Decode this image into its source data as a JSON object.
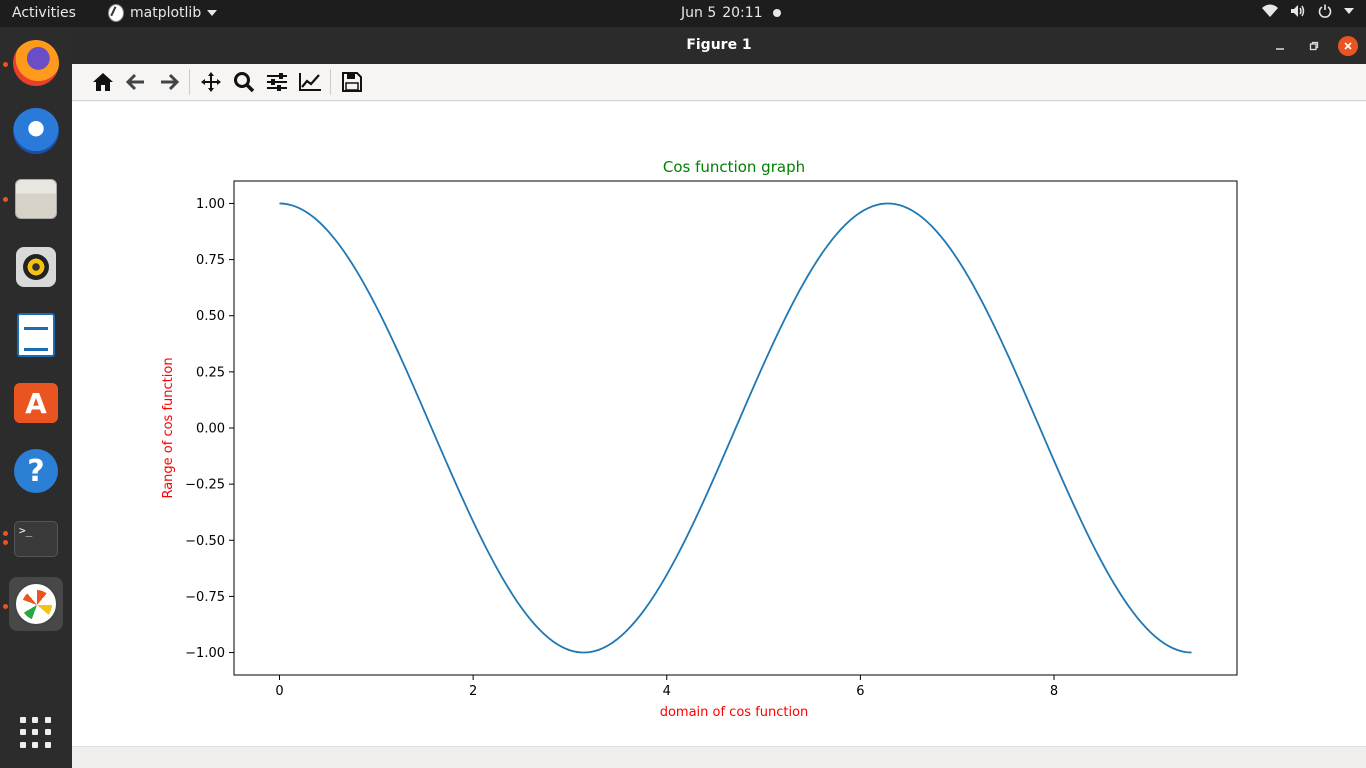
{
  "topbar": {
    "activities": "Activities",
    "app_name": "matplotlib",
    "date": "Jun 5",
    "time": "20:11"
  },
  "dock": {
    "items": [
      "firefox",
      "thunderbird",
      "files",
      "rhythmbox",
      "libreoffice-writer",
      "software-center",
      "help",
      "terminal",
      "matplotlib"
    ],
    "terminal_glyph": ">_"
  },
  "window": {
    "title": "Figure 1",
    "toolbar": [
      "home",
      "back",
      "forward",
      "pan",
      "zoom",
      "configure-subplots",
      "edit-axis",
      "save"
    ]
  },
  "colors": {
    "line": "#1f77b4",
    "title": "#008000",
    "labels": "#ff0000",
    "accent": "#e95420"
  },
  "chart_data": {
    "type": "line",
    "title": "Cos function graph",
    "xlabel": "domain of cos function",
    "ylabel": "Range of cos function",
    "function": "cos(x)",
    "x_range": [
      0,
      9.42
    ],
    "xlim": [
      -0.47,
      9.89
    ],
    "ylim": [
      -1.1,
      1.1
    ],
    "xticks": [
      0,
      2,
      4,
      6,
      8
    ],
    "xtick_labels": [
      "0",
      "2",
      "4",
      "6",
      "8"
    ],
    "yticks": [
      1.0,
      0.75,
      0.5,
      0.25,
      0.0,
      -0.25,
      -0.5,
      -0.75,
      -1.0
    ],
    "ytick_labels": [
      "1.00",
      "0.75",
      "0.50",
      "0.25",
      "0.00",
      "−0.25",
      "−0.50",
      "−0.75",
      "−1.00"
    ],
    "series": [
      {
        "x": [
          0,
          0.5,
          1,
          1.5,
          2,
          2.5,
          3,
          3.14,
          3.5,
          4,
          4.5,
          5,
          5.5,
          6,
          6.28,
          6.5,
          7,
          7.5,
          8,
          8.5,
          9,
          9.42
        ],
        "y": [
          1.0,
          0.878,
          0.54,
          0.071,
          -0.416,
          -0.801,
          -0.99,
          -1.0,
          -0.936,
          -0.654,
          -0.211,
          0.284,
          0.709,
          0.96,
          1.0,
          0.977,
          0.754,
          0.347,
          -0.146,
          -0.602,
          -0.911,
          -1.0
        ]
      }
    ],
    "grid": false,
    "legend": false
  }
}
